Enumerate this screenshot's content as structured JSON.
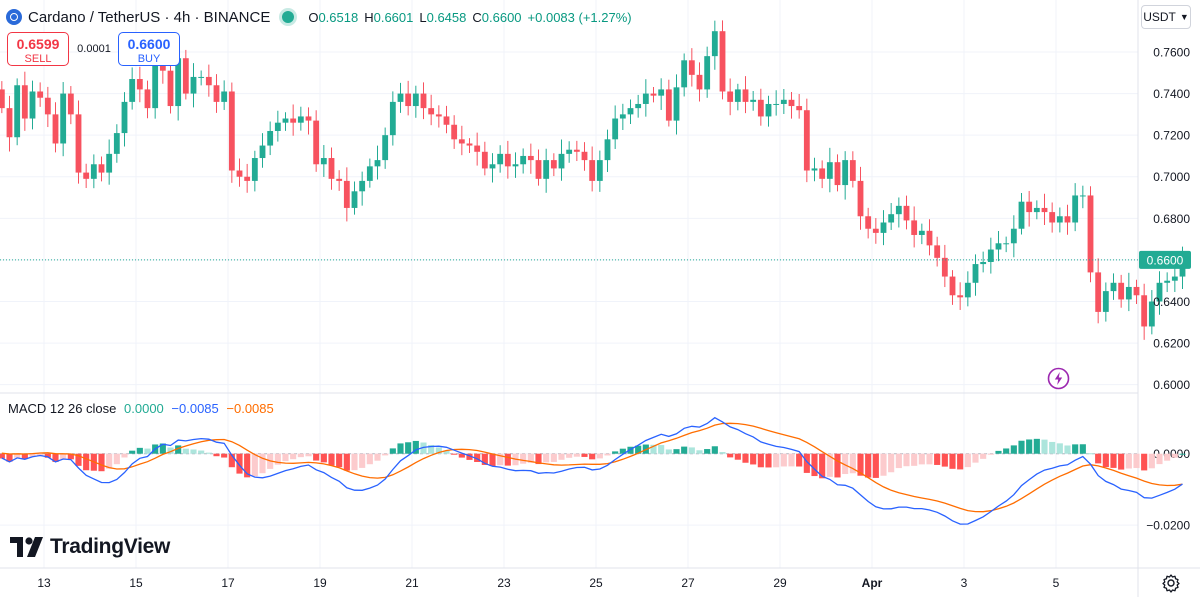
{
  "header": {
    "symbol": "Cardano / TetherUS · 4h · BINANCE",
    "ohlc": [
      {
        "key": "O",
        "value": "0.6518"
      },
      {
        "key": "H",
        "value": "0.6601"
      },
      {
        "key": "L",
        "value": "0.6458"
      },
      {
        "key": "C",
        "value": "0.6600"
      }
    ],
    "change": "+0.0083 (+1.27%)"
  },
  "trade": {
    "sell_price": "0.6599",
    "sell_label": "SELL",
    "buy_price": "0.6600",
    "buy_label": "BUY",
    "spread": "0.0001"
  },
  "currency_button": "USDT",
  "brand": "TradingView",
  "macd_legend": {
    "title": "MACD 12 26 close",
    "histogram": "0.0000",
    "macd": "−0.0085",
    "signal": "−0.0085"
  },
  "colors": {
    "up": "#22ab94",
    "down": "#f7525f",
    "macd_line": "#2962ff",
    "signal_line": "#ff6d00",
    "hist_up_strong": "#22ab94",
    "hist_up_weak": "#ace5dc",
    "hist_down_strong": "#ff5252",
    "hist_down_weak": "#fccbcd",
    "accent_purple": "#9c27b0",
    "last_price_badge": "#22ab94"
  },
  "icons": [
    "cardano-logo-icon",
    "market-open-dot-icon",
    "chevron-down-icon",
    "tradingview-logo-icon",
    "flash-icon",
    "settings-gear-icon"
  ],
  "chart_data": [
    {
      "type": "candlestick",
      "title": "Cardano / TetherUS · 4h · BINANCE",
      "x_ticks": [
        "13",
        "15",
        "17",
        "19",
        "21",
        "23",
        "25",
        "27",
        "29",
        "Apr",
        "3",
        "5"
      ],
      "y_ticks": [
        "0.7600",
        "0.7400",
        "0.7200",
        "0.7000",
        "0.6800",
        "0.6600",
        "0.6400",
        "0.6200",
        "0.6000"
      ],
      "ylim": [
        0.596,
        0.785
      ],
      "last_price": "0.6600",
      "bars_per_day": 6,
      "first_bar_day": 12,
      "grid": true,
      "closes": [
        0.733,
        0.719,
        0.744,
        0.728,
        0.741,
        0.738,
        0.73,
        0.716,
        0.74,
        0.73,
        0.702,
        0.699,
        0.706,
        0.702,
        0.711,
        0.721,
        0.736,
        0.747,
        0.742,
        0.733,
        0.755,
        0.751,
        0.734,
        0.757,
        0.74,
        0.748,
        0.748,
        0.744,
        0.736,
        0.741,
        0.703,
        0.7,
        0.698,
        0.709,
        0.715,
        0.722,
        0.726,
        0.728,
        0.726,
        0.729,
        0.727,
        0.706,
        0.709,
        0.699,
        0.698,
        0.685,
        0.693,
        0.698,
        0.705,
        0.708,
        0.72,
        0.736,
        0.74,
        0.734,
        0.74,
        0.733,
        0.73,
        0.729,
        0.725,
        0.718,
        0.716,
        0.715,
        0.712,
        0.704,
        0.706,
        0.711,
        0.705,
        0.706,
        0.71,
        0.708,
        0.699,
        0.708,
        0.704,
        0.711,
        0.713,
        0.712,
        0.708,
        0.698,
        0.708,
        0.718,
        0.728,
        0.73,
        0.733,
        0.735,
        0.74,
        0.739,
        0.742,
        0.727,
        0.743,
        0.756,
        0.749,
        0.742,
        0.758,
        0.77,
        0.741,
        0.736,
        0.742,
        0.736,
        0.737,
        0.729,
        0.735,
        0.735,
        0.737,
        0.734,
        0.732,
        0.703,
        0.704,
        0.699,
        0.707,
        0.696,
        0.708,
        0.698,
        0.681,
        0.675,
        0.673,
        0.678,
        0.682,
        0.686,
        0.679,
        0.672,
        0.674,
        0.667,
        0.661,
        0.652,
        0.643,
        0.642,
        0.649,
        0.658,
        0.659,
        0.665,
        0.668,
        0.668,
        0.675,
        0.688,
        0.683,
        0.685,
        0.683,
        0.678,
        0.681,
        0.678,
        0.691,
        0.691,
        0.654,
        0.635,
        0.645,
        0.649,
        0.641,
        0.647,
        0.643,
        0.628,
        0.64,
        0.649,
        0.65,
        0.652,
        0.66
      ]
    },
    {
      "type": "bar",
      "title": "MACD 12 26 close",
      "series": [
        {
          "name": "MACD",
          "style": "line"
        },
        {
          "name": "Signal",
          "style": "line"
        },
        {
          "name": "Histogram",
          "style": "bar"
        }
      ],
      "y_ticks": [
        "0.0000",
        "−0.0200"
      ],
      "ylim": [
        -0.032,
        0.017
      ],
      "histogram_end": 0.0,
      "macd_end": -0.0085,
      "signal_end": -0.0085
    }
  ]
}
